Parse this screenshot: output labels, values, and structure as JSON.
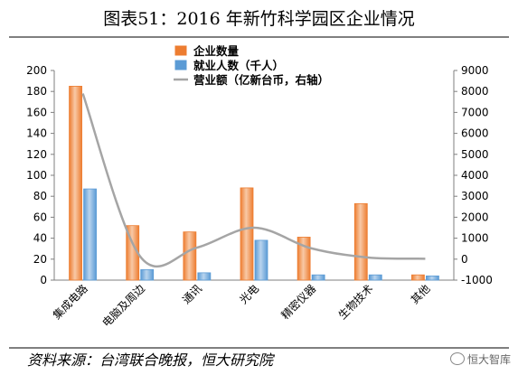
{
  "header": {
    "title": "图表51：2016 年新竹科学园区企业情况"
  },
  "footer": {
    "source": "资料来源：台湾联合晚报，恒大研究院",
    "watermark": "恒大智库"
  },
  "colors": {
    "companies": "#ed7d31",
    "employees": "#5b9bd5",
    "revenue": "#a5a5a5"
  },
  "chart_data": {
    "type": "bar",
    "categories": [
      "集成电路",
      "电脑及周边",
      "通讯",
      "光电",
      "精密仪器",
      "生物技术",
      "其他"
    ],
    "series": [
      {
        "name": "企业数量",
        "type": "bar",
        "axis": "left",
        "values": [
          185,
          52,
          46,
          88,
          41,
          73,
          5
        ]
      },
      {
        "name": "就业人数（千人）",
        "type": "bar",
        "axis": "left",
        "values": [
          87,
          10,
          7,
          38,
          5,
          5,
          4
        ]
      },
      {
        "name": "营业额（亿新台币，右轴）",
        "type": "line",
        "axis": "right",
        "smooth": true,
        "values": [
          7900,
          150,
          550,
          1500,
          520,
          80,
          20
        ]
      }
    ],
    "ylim_left": [
      0,
      200
    ],
    "yticks_left": [
      0,
      20,
      40,
      60,
      80,
      100,
      120,
      140,
      160,
      180,
      200
    ],
    "ylim_right": [
      -1000,
      9000
    ],
    "yticks_right": [
      -1000,
      0,
      1000,
      2000,
      3000,
      4000,
      5000,
      6000,
      7000,
      8000,
      9000
    ],
    "grid": false,
    "legend_position": "top"
  }
}
